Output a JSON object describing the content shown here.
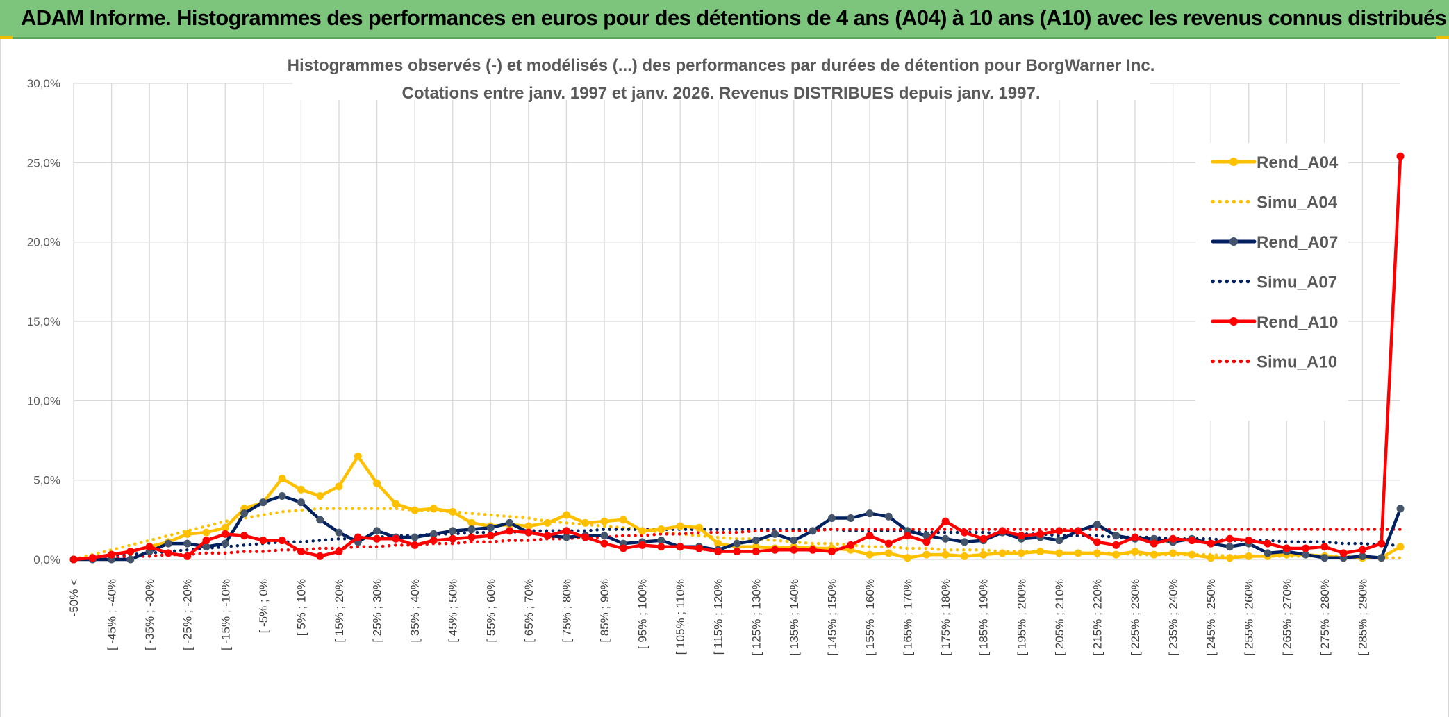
{
  "header": {
    "title": "ADAM Informe. Histogrammes des performances en euros pour des détentions de 4 ans (A04) à 10 ans (A10) avec les revenus connus distribués"
  },
  "chart_data": {
    "type": "line",
    "title": "Histogrammes observés (-) et modélisés (...) des performances par durées de détention pour BorgWarner Inc.",
    "subtitle": "Cotations entre janv. 1997 et janv. 2026. Revenus DISTRIBUES depuis janv. 1997.",
    "legend_position": "right",
    "ylim": [
      0,
      30
    ],
    "yticks": [
      "0,0%",
      "5,0%",
      "10,0%",
      "15,0%",
      "20,0%",
      "25,0%",
      "30,0%"
    ],
    "x_labels": [
      "-50% <",
      "[ -45% ; -40%",
      "[ -35% ; -30%",
      "[ -25% ; -20%",
      "[ -15% ; -10%",
      "[ -5% ; 0%",
      "[ 5% ; 10%",
      "[ 15% ; 20%",
      "[ 25% ; 30%",
      "[ 35% ; 40%",
      "[ 45% ; 50%",
      "[ 55% ; 60%",
      "[ 65% ; 70%",
      "[ 75% ; 80%",
      "[ 85% ; 90%",
      "[ 95% ; 100%",
      "[ 105% ; 110%",
      "[ 115% ; 120%",
      "[ 125% ; 130%",
      "[ 135% ; 140%",
      "[ 145% ; 150%",
      "[ 155% ; 160%",
      "[ 165% ; 170%",
      "[ 175% ; 180%",
      "[ 185% ; 190%",
      "[ 195% ; 200%",
      "[ 205% ; 210%",
      "[ 215% ; 220%",
      "[ 225% ; 230%",
      "[ 235% ; 240%",
      "[ 245% ; 250%",
      "[ 255% ; 260%",
      "[ 265% ; 270%",
      "[ 275% ; 280%",
      "[ 285% ; 290%"
    ],
    "n_bins": 71,
    "series": [
      {
        "name": "Rend_A04",
        "style": "solid",
        "color": "#ffc000",
        "marker": "#ffc000",
        "values": [
          0.0,
          0.1,
          0.3,
          0.5,
          0.8,
          1.1,
          1.6,
          1.7,
          2.0,
          3.2,
          3.6,
          5.1,
          4.4,
          4.0,
          4.6,
          6.5,
          4.8,
          3.5,
          3.1,
          3.2,
          3.0,
          2.3,
          2.1,
          2.2,
          2.1,
          2.3,
          2.8,
          2.3,
          2.4,
          2.5,
          1.8,
          1.9,
          2.1,
          2.0,
          1.0,
          0.8,
          0.8,
          0.7,
          0.8,
          0.7,
          0.7,
          0.6,
          0.3,
          0.4,
          0.1,
          0.3,
          0.3,
          0.2,
          0.3,
          0.4,
          0.4,
          0.5,
          0.4,
          0.4,
          0.4,
          0.3,
          0.5,
          0.3,
          0.4,
          0.3,
          0.1,
          0.1,
          0.2,
          0.2,
          0.3,
          0.3,
          0.2,
          0.1,
          0.1,
          0.1,
          0.8
        ]
      },
      {
        "name": "Simu_A04",
        "style": "dotted",
        "color": "#ffc000",
        "values": [
          0.0,
          0.3,
          0.6,
          0.9,
          1.2,
          1.5,
          1.8,
          2.1,
          2.4,
          2.6,
          2.8,
          3.0,
          3.1,
          3.2,
          3.2,
          3.2,
          3.2,
          3.2,
          3.1,
          3.1,
          3.0,
          2.9,
          2.8,
          2.7,
          2.6,
          2.4,
          2.3,
          2.2,
          2.1,
          2.0,
          1.9,
          1.7,
          1.6,
          1.5,
          1.4,
          1.3,
          1.3,
          1.2,
          1.1,
          1.0,
          1.0,
          0.9,
          0.8,
          0.8,
          0.7,
          0.7,
          0.6,
          0.6,
          0.6,
          0.5,
          0.5,
          0.5,
          0.4,
          0.4,
          0.4,
          0.4,
          0.3,
          0.3,
          0.3,
          0.3,
          0.3,
          0.2,
          0.2,
          0.2,
          0.2,
          0.2,
          0.2,
          0.2,
          0.2,
          0.1,
          0.1
        ]
      },
      {
        "name": "Rend_A07",
        "style": "solid",
        "color": "#002060",
        "marker": "#44546a",
        "values": [
          0.0,
          0.0,
          0.0,
          0.0,
          0.5,
          1.0,
          1.0,
          0.8,
          1.0,
          2.9,
          3.6,
          4.0,
          3.6,
          2.5,
          1.7,
          1.1,
          1.8,
          1.4,
          1.4,
          1.6,
          1.8,
          1.9,
          2.0,
          2.3,
          1.7,
          1.5,
          1.4,
          1.5,
          1.5,
          1.0,
          1.1,
          1.2,
          0.8,
          0.8,
          0.6,
          1.0,
          1.2,
          1.6,
          1.2,
          1.8,
          2.6,
          2.6,
          2.9,
          2.7,
          1.8,
          1.5,
          1.3,
          1.1,
          1.2,
          1.7,
          1.3,
          1.4,
          1.2,
          1.8,
          2.2,
          1.5,
          1.3,
          1.3,
          1.1,
          1.3,
          1.0,
          0.8,
          1.0,
          0.4,
          0.5,
          0.3,
          0.1,
          0.1,
          0.2,
          0.1,
          3.2
        ]
      },
      {
        "name": "Simu_A07",
        "style": "dotted",
        "color": "#002060",
        "values": [
          0.0,
          0.1,
          0.2,
          0.3,
          0.4,
          0.5,
          0.6,
          0.7,
          0.8,
          0.9,
          1.0,
          1.1,
          1.1,
          1.2,
          1.3,
          1.3,
          1.4,
          1.5,
          1.5,
          1.6,
          1.6,
          1.7,
          1.7,
          1.7,
          1.8,
          1.8,
          1.8,
          1.8,
          1.9,
          1.9,
          1.9,
          1.9,
          1.9,
          1.9,
          1.9,
          1.9,
          1.9,
          1.9,
          1.9,
          1.9,
          1.9,
          1.8,
          1.8,
          1.8,
          1.8,
          1.7,
          1.7,
          1.7,
          1.7,
          1.6,
          1.6,
          1.6,
          1.5,
          1.5,
          1.5,
          1.4,
          1.4,
          1.4,
          1.3,
          1.3,
          1.3,
          1.2,
          1.2,
          1.2,
          1.1,
          1.1,
          1.1,
          1.0,
          1.0,
          0.9,
          0.9
        ]
      },
      {
        "name": "Rend_A10",
        "style": "solid",
        "color": "#ff0000",
        "marker": "#ff0000",
        "values": [
          0.0,
          0.1,
          0.3,
          0.5,
          0.8,
          0.4,
          0.2,
          1.2,
          1.6,
          1.5,
          1.2,
          1.2,
          0.5,
          0.2,
          0.5,
          1.4,
          1.3,
          1.3,
          0.9,
          1.2,
          1.3,
          1.4,
          1.5,
          1.8,
          1.7,
          1.5,
          1.8,
          1.4,
          1.0,
          0.7,
          0.9,
          0.8,
          0.8,
          0.7,
          0.5,
          0.5,
          0.5,
          0.6,
          0.6,
          0.6,
          0.5,
          0.9,
          1.5,
          1.0,
          1.5,
          1.1,
          2.4,
          1.7,
          1.3,
          1.8,
          1.5,
          1.6,
          1.8,
          1.8,
          1.1,
          0.9,
          1.4,
          1.0,
          1.3,
          1.2,
          1.0,
          1.3,
          1.2,
          1.0,
          0.7,
          0.7,
          0.8,
          0.4,
          0.6,
          1.0,
          25.4
        ]
      },
      {
        "name": "Simu_A10",
        "style": "dotted",
        "color": "#ff0000",
        "values": [
          0.0,
          0.1,
          0.1,
          0.2,
          0.2,
          0.3,
          0.3,
          0.4,
          0.4,
          0.5,
          0.5,
          0.6,
          0.6,
          0.7,
          0.7,
          0.8,
          0.8,
          0.9,
          0.9,
          1.0,
          1.0,
          1.1,
          1.1,
          1.2,
          1.2,
          1.3,
          1.3,
          1.4,
          1.4,
          1.5,
          1.5,
          1.6,
          1.6,
          1.7,
          1.7,
          1.7,
          1.8,
          1.8,
          1.8,
          1.8,
          1.9,
          1.9,
          1.9,
          1.9,
          1.9,
          1.9,
          1.9,
          1.9,
          1.9,
          1.9,
          1.9,
          1.9,
          1.9,
          1.9,
          1.9,
          1.9,
          1.9,
          1.9,
          1.9,
          1.9,
          1.9,
          1.9,
          1.9,
          1.9,
          1.9,
          1.9,
          1.9,
          1.9,
          1.9,
          1.9,
          1.9
        ]
      }
    ]
  }
}
